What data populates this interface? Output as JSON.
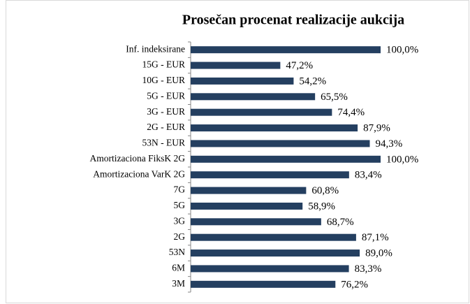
{
  "chart_data": {
    "type": "bar",
    "orientation": "horizontal",
    "title": "Prosečan procenat realizacije aukcija",
    "categories": [
      "Inf. indeksirane",
      "15G - EUR",
      "10G - EUR",
      "5G - EUR",
      "3G - EUR",
      "2G - EUR",
      "53N - EUR",
      "Amortizaciona FiksK 2G",
      "Amortizaciona VarK 2G",
      "7G",
      "5G",
      "3G",
      "2G",
      "53N",
      "6M",
      "3M"
    ],
    "values": [
      100.0,
      47.2,
      54.2,
      65.5,
      74.4,
      87.9,
      94.3,
      100.0,
      83.4,
      60.8,
      58.9,
      68.7,
      87.1,
      89.0,
      83.3,
      76.2
    ],
    "value_labels": [
      "100,0%",
      "47,2%",
      "54,2%",
      "65,5%",
      "74,4%",
      "87,9%",
      "94,3%",
      "100,0%",
      "83,4%",
      "60,8%",
      "58,9%",
      "68,7%",
      "87,1%",
      "89,0%",
      "83,3%",
      "76,2%"
    ],
    "color": "#243f60"
  }
}
